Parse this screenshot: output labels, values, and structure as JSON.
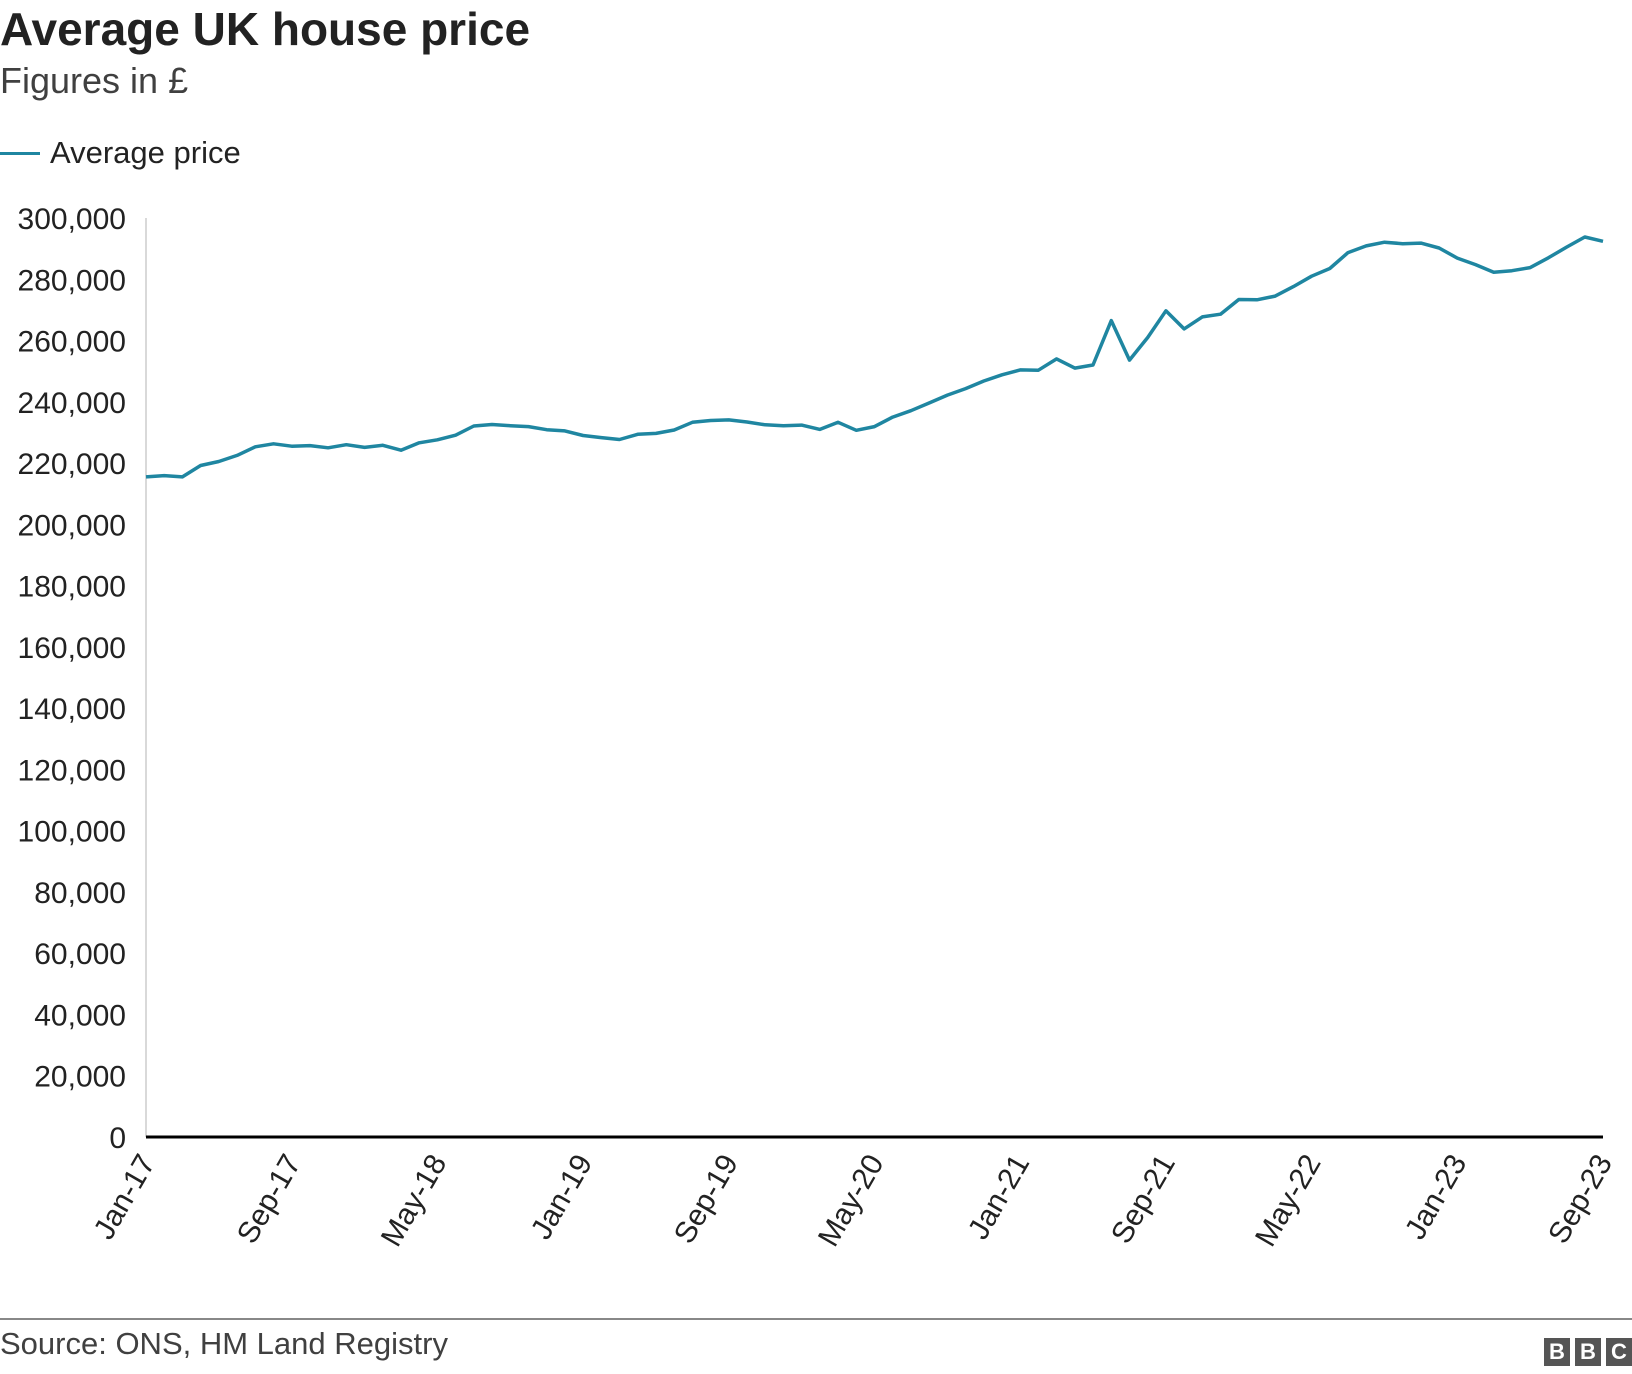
{
  "title": "Average UK house price",
  "subtitle": "Figures in £",
  "source": "Source: ONS, HM Land Registry",
  "logo_letters": [
    "B",
    "B",
    "C"
  ],
  "colors": {
    "line": "#1f86a1",
    "axis": "#000000",
    "text": "#222222"
  },
  "chart_data": {
    "type": "line",
    "title": "Average UK house price",
    "subtitle": "Figures in £",
    "xlabel": "",
    "ylabel": "",
    "ylim": [
      0,
      300000
    ],
    "yticks": [
      0,
      20000,
      40000,
      60000,
      80000,
      100000,
      120000,
      140000,
      160000,
      180000,
      200000,
      220000,
      240000,
      260000,
      280000,
      300000
    ],
    "ytick_labels": [
      "0",
      "20,000",
      "40,000",
      "60,000",
      "80,000",
      "100,000",
      "120,000",
      "140,000",
      "160,000",
      "180,000",
      "200,000",
      "220,000",
      "240,000",
      "260,000",
      "280,000",
      "300,000"
    ],
    "xtick_labels": [
      "Jan-17",
      "Sep-17",
      "May-18",
      "Jan-19",
      "Sep-19",
      "May-20",
      "Jan-21",
      "Sep-21",
      "May-22",
      "Jan-23",
      "Sep-23"
    ],
    "xtick_every": 8,
    "grid": false,
    "legend_position": "top-left",
    "x_start": "Jan-17",
    "x_end": "Sep-23",
    "series": [
      {
        "name": "Average price",
        "color": "#1f86a1",
        "values": [
          215500,
          215900,
          215500,
          219200,
          220500,
          222500,
          225300,
          226300,
          225500,
          225700,
          225000,
          226000,
          225100,
          225800,
          224200,
          226600,
          227600,
          229100,
          232100,
          232600,
          232200,
          231900,
          230900,
          230500,
          229000,
          228300,
          227700,
          229400,
          229700,
          230800,
          233300,
          233900,
          234100,
          233400,
          232500,
          232200,
          232400,
          231000,
          233300,
          230700,
          231900,
          235000,
          237100,
          239600,
          242200,
          244300,
          246800,
          248800,
          250400,
          250300,
          254000,
          251000,
          252000,
          266500,
          253600,
          261000,
          269700,
          263800,
          267700,
          268600,
          273400,
          273300,
          274500,
          277600,
          281000,
          283500,
          288700,
          290900,
          292100,
          291600,
          291800,
          290200,
          286900,
          284800,
          282300,
          282800,
          283800,
          287000,
          290500,
          293800,
          292400
        ]
      }
    ]
  }
}
